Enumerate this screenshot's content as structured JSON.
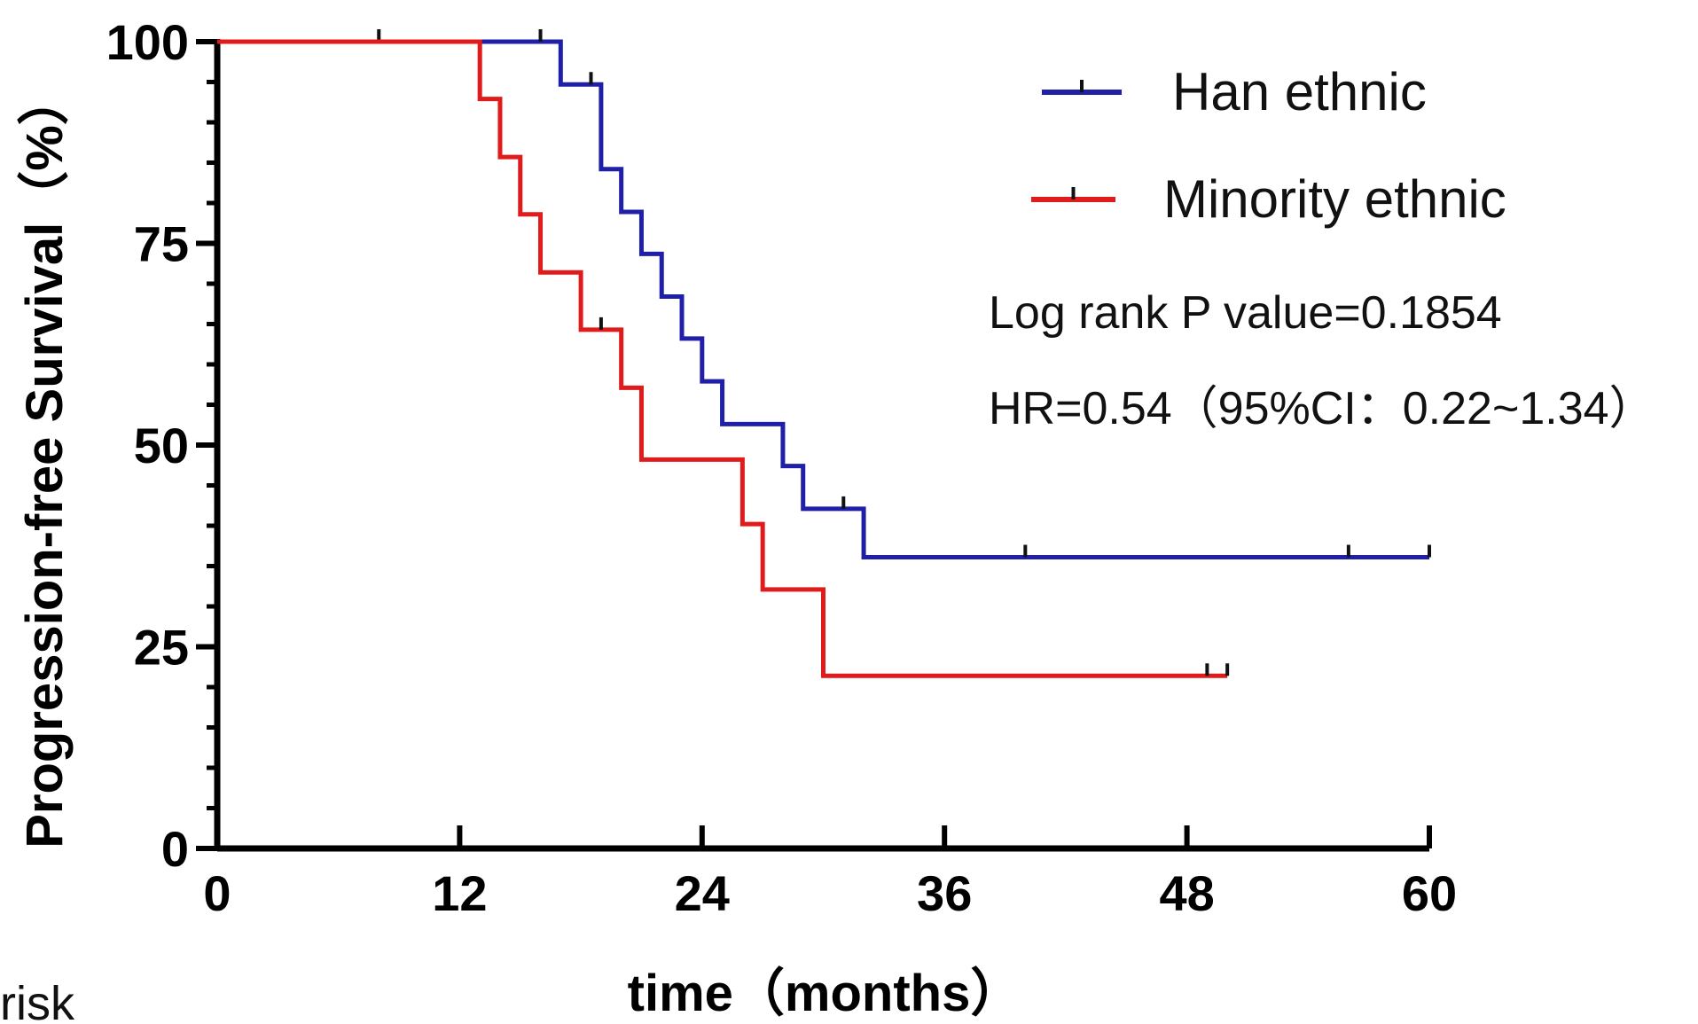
{
  "chart_data": {
    "type": "line",
    "subtype": "kaplan-meier-step",
    "title": "",
    "xlabel": "time（months）",
    "ylabel": "Progression-free Survival（%）",
    "xlim": [
      0,
      60
    ],
    "ylim": [
      0,
      100
    ],
    "x_ticks": [
      "0",
      "12",
      "24",
      "36",
      "48",
      "60"
    ],
    "y_ticks": [
      "0",
      "25",
      "50",
      "75",
      "100"
    ],
    "grid": false,
    "legend_position": "top-right",
    "side_label": "risk",
    "annotations": [
      "Log rank P value=0.1854",
      "HR=0.54（95%CI：0.22~1.34）"
    ],
    "series": [
      {
        "name": "Han ethnic",
        "color": "#1f1fa8",
        "steps": [
          [
            0,
            100
          ],
          [
            17,
            94.7
          ],
          [
            19,
            84.2
          ],
          [
            20,
            78.9
          ],
          [
            21,
            73.7
          ],
          [
            22,
            68.4
          ],
          [
            23,
            63.2
          ],
          [
            24,
            57.9
          ],
          [
            25,
            52.6
          ],
          [
            28,
            47.4
          ],
          [
            29,
            42.1
          ],
          [
            32,
            36.1
          ],
          [
            60,
            36.1
          ]
        ],
        "censored": [
          [
            8,
            100
          ],
          [
            16,
            100
          ],
          [
            18.5,
            94.7
          ],
          [
            31,
            42.1
          ],
          [
            40,
            36.1
          ],
          [
            56,
            36.1
          ],
          [
            60,
            36.1
          ]
        ]
      },
      {
        "name": "Minority ethnic",
        "color": "#e01b1b",
        "steps": [
          [
            0,
            100
          ],
          [
            13,
            92.9
          ],
          [
            14,
            85.7
          ],
          [
            15,
            78.6
          ],
          [
            16,
            71.4
          ],
          [
            18,
            64.3
          ],
          [
            20,
            57.1
          ],
          [
            21,
            48.2
          ],
          [
            26,
            40.2
          ],
          [
            27,
            32.1
          ],
          [
            30,
            21.4
          ],
          [
            50,
            21.4
          ]
        ],
        "censored": [
          [
            19,
            64.3
          ],
          [
            49,
            21.4
          ],
          [
            50,
            21.4
          ]
        ]
      }
    ]
  }
}
